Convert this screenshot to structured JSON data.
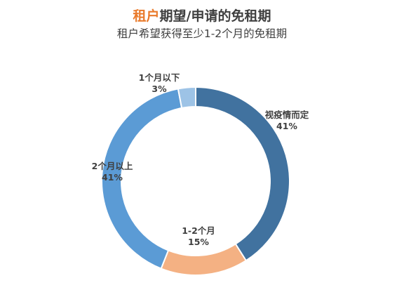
{
  "title": {
    "highlight": "租户",
    "rest": "期望/申请的免租期"
  },
  "subtitle": "租户希望获得至少1-2个月的免租期",
  "chart_data": {
    "type": "pie",
    "donut": true,
    "title": "租户期望/申请的免租期",
    "subtitle": "租户希望获得至少1-2个月的免租期",
    "slices": [
      {
        "name": "视疫情而定",
        "value": 41,
        "label": "41%",
        "color": "#41729f"
      },
      {
        "name": "1-2个月",
        "value": 15,
        "label": "15%",
        "color": "#f4b183"
      },
      {
        "name": "2个月以上",
        "value": 41,
        "label": "41%",
        "color": "#5b9bd5"
      },
      {
        "name": "1个月以下",
        "value": 3,
        "label": "3%",
        "color": "#9dc3e6"
      }
    ],
    "start": "12 o'clock",
    "direction": "clockwise",
    "legend": "none"
  }
}
